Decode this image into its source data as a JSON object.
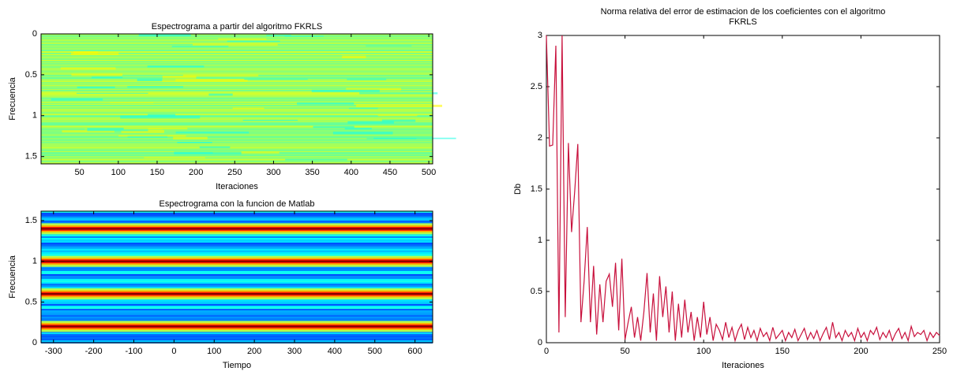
{
  "chart_data": [
    {
      "type": "heatmap",
      "title": "Espectrograma a partir del algoritmo FKRLS",
      "xlabel": "Iteraciones",
      "ylabel": "Frecuencia",
      "xlim": [
        0.5,
        505
      ],
      "xticks": [
        50,
        100,
        150,
        200,
        250,
        300,
        350,
        400,
        450,
        500
      ],
      "ylim": [
        0,
        1.59
      ],
      "yticks": [
        0,
        0.5,
        1,
        1.5
      ],
      "reverse_y": true,
      "colormap": "jet"
    },
    {
      "type": "heatmap",
      "title": "Espectrograma con la funcion de Matlab",
      "xlabel": "Tiempo",
      "ylabel": "Frecuencia",
      "xlim": [
        -331,
        644
      ],
      "xticks": [
        -300,
        -200,
        -100,
        0,
        100,
        200,
        300,
        400,
        500,
        600
      ],
      "ylim": [
        0,
        1.617
      ],
      "yticks": [
        0,
        0.5,
        1,
        1.5
      ],
      "reverse_y": false,
      "colormap": "jet",
      "peaks": [
        0.2,
        0.6,
        1.0,
        1.4
      ]
    },
    {
      "type": "line",
      "title": [
        "Norma relativa del error de estimacion de los coeficientes con el algoritmo",
        "FKRLS"
      ],
      "xlabel": "Iteraciones",
      "ylabel": "Db",
      "color": "#c8103c",
      "xlim": [
        0,
        250
      ],
      "xticks": [
        0,
        50,
        100,
        150,
        200,
        250
      ],
      "ylim": [
        0,
        3
      ],
      "yticks": [
        0,
        0.5,
        1,
        1.5,
        2,
        2.5,
        3
      ],
      "x": [
        0,
        2,
        4,
        6,
        8,
        10,
        12,
        14,
        16,
        18,
        20,
        22,
        24,
        26,
        28,
        30,
        32,
        34,
        36,
        38,
        40,
        42,
        44,
        46,
        48,
        50,
        52,
        54,
        56,
        58,
        60,
        62,
        64,
        66,
        68,
        70,
        72,
        74,
        76,
        78,
        80,
        82,
        84,
        86,
        88,
        90,
        92,
        94,
        96,
        98,
        100,
        102,
        104,
        106,
        108,
        110,
        112,
        114,
        116,
        118,
        120,
        122,
        124,
        126,
        128,
        130,
        132,
        134,
        136,
        138,
        140,
        142,
        144,
        146,
        148,
        150,
        152,
        154,
        156,
        158,
        160,
        162,
        164,
        166,
        168,
        170,
        172,
        174,
        176,
        178,
        180,
        182,
        184,
        186,
        188,
        190,
        192,
        194,
        196,
        198,
        200,
        202,
        204,
        206,
        208,
        210,
        212,
        214,
        216,
        218,
        220,
        222,
        224,
        226,
        228,
        230,
        232,
        234,
        236,
        238,
        240,
        242,
        244,
        246,
        248,
        250
      ],
      "values": [
        3,
        1.92,
        1.93,
        2.9,
        0.1,
        3,
        0.25,
        1.95,
        1.08,
        1.48,
        1.94,
        0.2,
        0.6,
        1.13,
        0.2,
        0.75,
        0.08,
        0.57,
        0.2,
        0.6,
        0.67,
        0.35,
        0.78,
        0.12,
        0.82,
        0.03,
        0.2,
        0.35,
        0.05,
        0.25,
        0.02,
        0.3,
        0.68,
        0.1,
        0.48,
        0.02,
        0.65,
        0.25,
        0.55,
        0.1,
        0.5,
        0.02,
        0.38,
        0.05,
        0.42,
        0.1,
        0.3,
        0.02,
        0.25,
        0.05,
        0.4,
        0.08,
        0.25,
        0.02,
        0.18,
        0.12,
        0.03,
        0.2,
        0.05,
        0.15,
        0.02,
        0.12,
        0.18,
        0.03,
        0.15,
        0.05,
        0.12,
        0.02,
        0.14,
        0.06,
        0.1,
        0.02,
        0.15,
        0.04,
        0.08,
        0.12,
        0.02,
        0.1,
        0.05,
        0.13,
        0.02,
        0.08,
        0.14,
        0.03,
        0.1,
        0.04,
        0.12,
        0.02,
        0.09,
        0.15,
        0.03,
        0.2,
        0.05,
        0.1,
        0.02,
        0.12,
        0.06,
        0.1,
        0.02,
        0.14,
        0.05,
        0.1,
        0.02,
        0.12,
        0.08,
        0.15,
        0.03,
        0.1,
        0.05,
        0.12,
        0.02,
        0.09,
        0.14,
        0.04,
        0.1,
        0.02,
        0.16,
        0.06,
        0.1,
        0.08,
        0.12,
        0.02,
        0.1,
        0.05,
        0.1,
        0.07
      ]
    }
  ]
}
